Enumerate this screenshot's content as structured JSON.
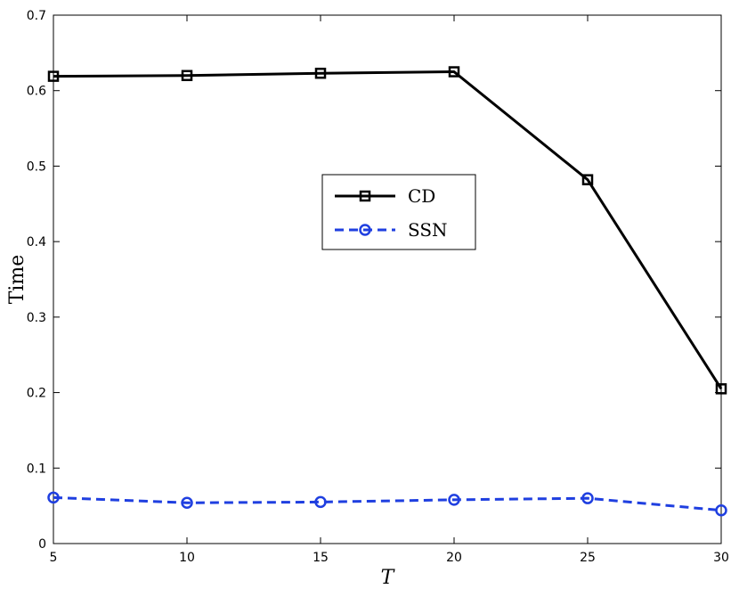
{
  "chart_data": {
    "type": "line",
    "title": "",
    "xlabel": "T",
    "ylabel": "Time",
    "x": [
      5,
      10,
      15,
      20,
      25,
      30
    ],
    "xlim": [
      5,
      30
    ],
    "ylim": [
      0,
      0.7
    ],
    "xticks": [
      "5",
      "10",
      "15",
      "20",
      "25",
      "30"
    ],
    "yticks": [
      "0",
      "0.1",
      "0.2",
      "0.3",
      "0.4",
      "0.5",
      "0.6",
      "0.7"
    ],
    "grid": false,
    "legend_position": "center",
    "series": [
      {
        "name": "CD",
        "values": [
          0.619,
          0.62,
          0.623,
          0.625,
          0.482,
          0.205
        ],
        "color": "#000000",
        "line_style": "solid",
        "marker": "square"
      },
      {
        "name": "SSN",
        "values": [
          0.061,
          0.054,
          0.055,
          0.058,
          0.06,
          0.044
        ],
        "color": "#1f3fe0",
        "line_style": "dashed",
        "marker": "circle"
      }
    ]
  }
}
